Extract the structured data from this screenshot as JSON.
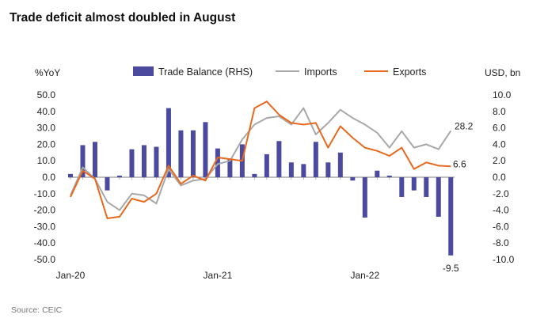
{
  "title": "Trade deficit almost doubled in August",
  "source": "Source: CEIC",
  "chart_data": {
    "type": "bar+line",
    "left_axis": {
      "label": "%YoY",
      "min": -50,
      "max": 50,
      "ticks": [
        "50.0",
        "40.0",
        "30.0",
        "20.0",
        "10.0",
        "0.0",
        "-10.0",
        "-20.0",
        "-30.0",
        "-40.0",
        "-50.0"
      ]
    },
    "right_axis": {
      "label": "USD, bn",
      "min": -10,
      "max": 10,
      "ticks": [
        "10.0",
        "8.0",
        "6.0",
        "4.0",
        "2.0",
        "0.0",
        "-2.0",
        "-4.0",
        "-6.0",
        "-8.0",
        "-10.0"
      ]
    },
    "x_labels": [
      "Jan-20",
      "Jan-21",
      "Jan-22"
    ],
    "months": [
      "Jan-20",
      "Feb-20",
      "Mar-20",
      "Apr-20",
      "May-20",
      "Jun-20",
      "Jul-20",
      "Aug-20",
      "Sep-20",
      "Oct-20",
      "Nov-20",
      "Dec-20",
      "Jan-21",
      "Feb-21",
      "Mar-21",
      "Apr-21",
      "May-21",
      "Jun-21",
      "Jul-21",
      "Aug-21",
      "Sep-21",
      "Oct-21",
      "Nov-21",
      "Dec-21",
      "Jan-22",
      "Feb-22",
      "Mar-22",
      "Apr-22",
      "May-22",
      "Jun-22",
      "Jul-22",
      "Aug-22"
    ],
    "series": [
      {
        "name": "Trade Balance (RHS)",
        "type": "bar",
        "axis": "right",
        "color": "#4b4a9e",
        "values": [
          0.4,
          3.9,
          4.3,
          -1.6,
          0.2,
          3.4,
          3.9,
          3.7,
          8.4,
          5.7,
          5.7,
          6.7,
          3.5,
          2.3,
          4.0,
          0.4,
          2.8,
          4.4,
          1.8,
          1.6,
          4.3,
          1.8,
          3.0,
          -0.4,
          -4.9,
          0.8,
          0.2,
          -2.4,
          -1.6,
          -2.4,
          -4.8,
          -9.5
        ]
      },
      {
        "name": "Imports",
        "type": "line",
        "axis": "left",
        "color": "#a8a8a8",
        "values": [
          -11,
          6,
          -1,
          -15,
          -20,
          -10,
          -11,
          -16,
          5,
          -5,
          -2,
          -1,
          8,
          10,
          23,
          32,
          36,
          37,
          32,
          42,
          26,
          33,
          41,
          36,
          32,
          27,
          18,
          28,
          18,
          20,
          17,
          28.2
        ]
      },
      {
        "name": "Exports",
        "type": "line",
        "axis": "left",
        "color": "#e8691e",
        "values": [
          -12,
          4,
          -1,
          -25,
          -24,
          -13,
          -15,
          -10,
          7,
          -4,
          1,
          -2,
          12,
          11,
          10,
          42,
          46,
          38,
          33,
          32,
          33,
          18,
          31,
          24,
          18,
          16,
          13,
          18,
          5,
          9,
          7,
          6.6
        ]
      }
    ],
    "annotations": {
      "imports_last": "28.2",
      "exports_last": "6.6",
      "balance_last": "-9.5"
    }
  }
}
